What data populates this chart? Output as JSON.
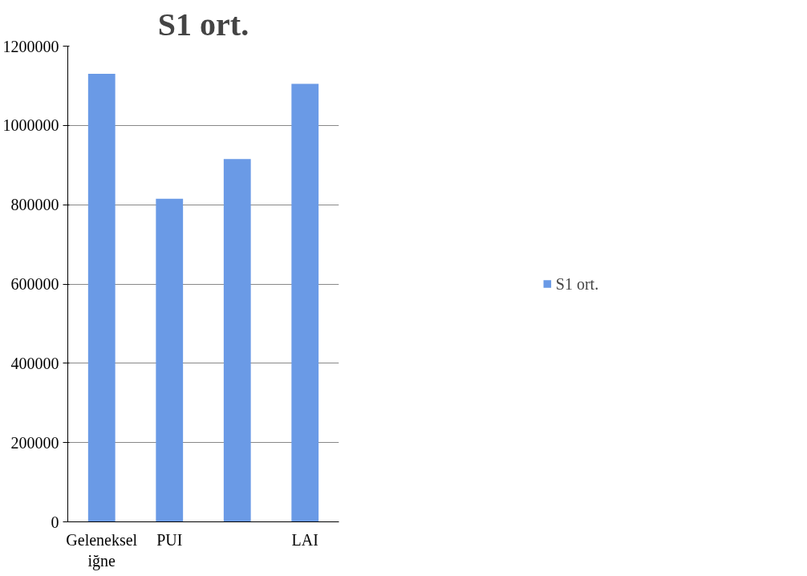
{
  "chart_data": {
    "type": "bar",
    "title": "S1 ort.",
    "categories": [
      "Geleneksel iğne",
      "PUI",
      null,
      "LAI"
    ],
    "series": [
      {
        "name": "S1 ort.",
        "color": "#6a9ae6",
        "values": [
          1130000,
          815000,
          915000,
          1105000
        ]
      }
    ],
    "ylim": [
      0,
      1200000
    ],
    "yticks": [
      0,
      200000,
      400000,
      600000,
      800000,
      1000000,
      1200000
    ],
    "grid": "y",
    "legend": "right"
  }
}
